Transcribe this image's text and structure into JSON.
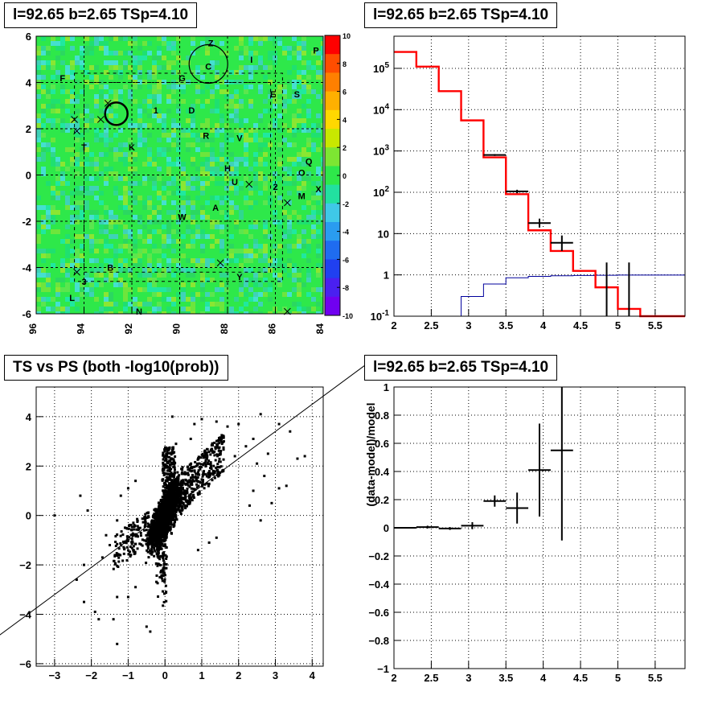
{
  "panels": {
    "skymap": {
      "title": "l=92.65 b=2.65 TSp=4.10"
    },
    "spectrum": {
      "title": "l=92.65 b=2.65 TSp=4.10"
    },
    "tsps": {
      "title": "TS vs PS (both -log10(prob))"
    },
    "residual": {
      "title": "l=92.65 b=2.65 TSp=4.10"
    }
  },
  "colors": {
    "model_line": "#ff0000",
    "background_line": "#00009c",
    "data": "#000000",
    "map_base": "#2ee84a"
  },
  "chart_data": [
    {
      "type": "heatmap",
      "title": "l=92.65 b=2.65 TSp=4.10",
      "x_ticks": [
        "96",
        "94",
        "92",
        "90",
        "88",
        "86",
        "84"
      ],
      "y_ticks": [
        "6",
        "4",
        "2",
        "0",
        "-2",
        "-4",
        "-6"
      ],
      "xlim": [
        96,
        84
      ],
      "ylim": [
        -6,
        6
      ],
      "colorbar": {
        "range": [
          -10,
          10
        ],
        "ticks": [
          "10",
          "8",
          "6",
          "4",
          "2",
          "0",
          "-2",
          "-4",
          "-6",
          "-8",
          "-10"
        ]
      },
      "source_labels": [
        {
          "t": "Z",
          "x": 88.7,
          "y": 5.7
        },
        {
          "t": "C",
          "x": 88.8,
          "y": 4.7
        },
        {
          "t": "I",
          "x": 87.0,
          "y": 5.0
        },
        {
          "t": "P",
          "x": 84.3,
          "y": 5.4
        },
        {
          "t": "F",
          "x": 94.9,
          "y": 4.2
        },
        {
          "t": "G",
          "x": 89.9,
          "y": 4.2
        },
        {
          "t": "E",
          "x": 86.1,
          "y": 3.5
        },
        {
          "t": "S",
          "x": 85.1,
          "y": 3.5
        },
        {
          "t": "1",
          "x": 91.0,
          "y": 2.8
        },
        {
          "t": "D",
          "x": 89.5,
          "y": 2.8
        },
        {
          "t": "R",
          "x": 88.9,
          "y": 1.7
        },
        {
          "t": "V",
          "x": 87.5,
          "y": 1.6
        },
        {
          "t": "T",
          "x": 94.0,
          "y": 1.2
        },
        {
          "t": "K",
          "x": 92.0,
          "y": 1.2
        },
        {
          "t": "H",
          "x": 88.0,
          "y": 0.3
        },
        {
          "t": "Q",
          "x": 84.6,
          "y": 0.6
        },
        {
          "t": "O",
          "x": 84.9,
          "y": 0.1
        },
        {
          "t": "U",
          "x": 87.7,
          "y": -0.3
        },
        {
          "t": "2",
          "x": 86.0,
          "y": -0.5
        },
        {
          "t": "X",
          "x": 84.2,
          "y": -0.6
        },
        {
          "t": "M",
          "x": 84.9,
          "y": -0.9
        },
        {
          "t": "A",
          "x": 88.5,
          "y": -1.4
        },
        {
          "t": "W",
          "x": 89.9,
          "y": -1.8
        },
        {
          "t": "B",
          "x": 92.9,
          "y": -4.0
        },
        {
          "t": "Y",
          "x": 87.5,
          "y": -4.4
        },
        {
          "t": "3",
          "x": 94.0,
          "y": -4.6
        },
        {
          "t": "L",
          "x": 94.5,
          "y": -5.3
        },
        {
          "t": "N",
          "x": 91.7,
          "y": -5.9
        }
      ]
    },
    {
      "type": "line",
      "title": "l=92.65 b=2.65 TSp=4.10",
      "x_ticks": [
        "2",
        "2.5",
        "3",
        "3.5",
        "4",
        "4.5",
        "5",
        "5.5"
      ],
      "y_ticks": [
        "10^{-1}",
        "1",
        "10",
        "10^{2}",
        "10^{3}",
        "10^{4}",
        "10^{5}"
      ],
      "xlim": [
        2,
        5.9
      ],
      "ylim": [
        0.1,
        600000
      ],
      "log_y": true,
      "grid": true,
      "bin_edges": [
        2.0,
        2.3,
        2.6,
        2.9,
        3.2,
        3.5,
        3.8,
        4.1,
        4.4,
        4.7,
        5.0,
        5.3,
        5.6,
        5.9
      ],
      "series": [
        {
          "values": [
            250000,
            110000,
            28000,
            5500,
            700,
            90,
            12,
            3.8,
            1.25,
            0.5,
            0.15,
            0.1,
            0.1
          ]
        },
        {
          "values": [
            0.1,
            0.1,
            0.1,
            0.3,
            0.6,
            0.85,
            0.92,
            0.95,
            0.97,
            0.98,
            0.99,
            0.99,
            0.99
          ]
        },
        {
          "points": [
            {
              "x": 3.35,
              "y": 800,
              "xerr": 0.15,
              "lo": 760,
              "hi": 840
            },
            {
              "x": 3.65,
              "y": 105,
              "xerr": 0.15,
              "lo": 95,
              "hi": 115
            },
            {
              "x": 3.95,
              "y": 18,
              "xerr": 0.15,
              "lo": 14,
              "hi": 23
            },
            {
              "x": 4.25,
              "y": 6,
              "xerr": 0.15,
              "lo": 3.8,
              "hi": 9
            },
            {
              "x": 4.85,
              "y": 1,
              "xerr": 0.0,
              "lo": 0.1,
              "hi": 2.0
            },
            {
              "x": 5.15,
              "y": 1,
              "xerr": 0.0,
              "lo": 0.1,
              "hi": 2.0
            }
          ]
        }
      ]
    },
    {
      "type": "scatter",
      "title": "TS vs PS (both -log10(prob))",
      "x_ticks": [
        "−3",
        "−2",
        "−1",
        "0",
        "1",
        "2",
        "3",
        "4"
      ],
      "y_ticks": [
        "4",
        "2",
        "0",
        "−2",
        "−4",
        "−6"
      ],
      "xlim": [
        -3.5,
        4.3
      ],
      "ylim": [
        -6.1,
        5.2
      ],
      "grid": true,
      "fit_line": {
        "slope": 1.1,
        "intercept": 0.1
      },
      "outliers": [
        [
          -3.0,
          0.0
        ],
        [
          -2.3,
          0.8
        ],
        [
          -2.4,
          -2.6
        ],
        [
          -2.2,
          -2.0
        ],
        [
          -1.9,
          -3.9
        ],
        [
          -1.8,
          -4.2
        ],
        [
          -1.4,
          -4.2
        ],
        [
          -1.7,
          -1.7
        ],
        [
          -1.5,
          -1.2
        ],
        [
          -1.2,
          0.8
        ],
        [
          -1.6,
          -0.8
        ],
        [
          -0.8,
          -2.9
        ],
        [
          -1.3,
          -3.3
        ],
        [
          -1.0,
          -3.3
        ],
        [
          -0.4,
          -4.7
        ],
        [
          -1.3,
          -5.2
        ],
        [
          -2.1,
          0.2
        ],
        [
          -1.3,
          -0.2
        ],
        [
          0.8,
          3.7
        ],
        [
          1.0,
          3.9
        ],
        [
          1.4,
          3.8
        ],
        [
          1.7,
          3.6
        ],
        [
          2.0,
          3.7
        ],
        [
          2.6,
          4.1
        ],
        [
          2.4,
          3.1
        ],
        [
          3.1,
          3.7
        ],
        [
          3.4,
          3.4
        ],
        [
          3.6,
          2.3
        ],
        [
          2.8,
          2.5
        ],
        [
          2.7,
          1.6
        ],
        [
          2.4,
          1.0
        ],
        [
          2.9,
          0.5
        ],
        [
          2.6,
          -0.2
        ],
        [
          3.1,
          1.1
        ],
        [
          3.3,
          1.2
        ],
        [
          2.2,
          2.8
        ],
        [
          1.9,
          2.4
        ],
        [
          1.6,
          3.0
        ],
        [
          0.3,
          2.9
        ],
        [
          0.7,
          3.1
        ],
        [
          0.2,
          4.0
        ],
        [
          -0.5,
          -4.5
        ],
        [
          -2.2,
          -3.5
        ],
        [
          2.5,
          2.1
        ],
        [
          1.4,
          -0.9
        ],
        [
          1.2,
          -1.1
        ],
        [
          0.9,
          -1.4
        ],
        [
          -0.8,
          1.4
        ],
        [
          -1.0,
          1.1
        ],
        [
          3.8,
          2.4
        ],
        [
          2.3,
          0.4
        ]
      ]
    },
    {
      "type": "scatter",
      "title": "l=92.65 b=2.65 TSp=4.10",
      "ylabel": "(data-model)/model",
      "x_ticks": [
        "2",
        "2.5",
        "3",
        "3.5",
        "4",
        "4.5",
        "5",
        "5.5"
      ],
      "y_ticks": [
        "1",
        "0.8",
        "0.6",
        "0.4",
        "0.2",
        "0",
        "−0.2",
        "−0.4",
        "−0.6",
        "−0.8",
        "−1"
      ],
      "xlim": [
        2,
        5.9
      ],
      "ylim": [
        -1,
        1
      ],
      "grid": true,
      "points": [
        {
          "x": 2.15,
          "y": 0.0,
          "xerr": 0.15,
          "yerr": 0.005
        },
        {
          "x": 2.45,
          "y": 0.005,
          "xerr": 0.15,
          "yerr": 0.01
        },
        {
          "x": 2.75,
          "y": -0.005,
          "xerr": 0.15,
          "yerr": 0.01
        },
        {
          "x": 3.05,
          "y": 0.015,
          "xerr": 0.15,
          "yerr": 0.025
        },
        {
          "x": 3.35,
          "y": 0.19,
          "xerr": 0.15,
          "yerr": 0.04
        },
        {
          "x": 3.65,
          "y": 0.14,
          "xerr": 0.15,
          "yerr": 0.11
        },
        {
          "x": 3.95,
          "y": 0.41,
          "xerr": 0.15,
          "yerr": 0.33
        },
        {
          "x": 4.25,
          "y": 0.55,
          "xerr": 0.15,
          "yerr": 0.64
        }
      ]
    }
  ]
}
